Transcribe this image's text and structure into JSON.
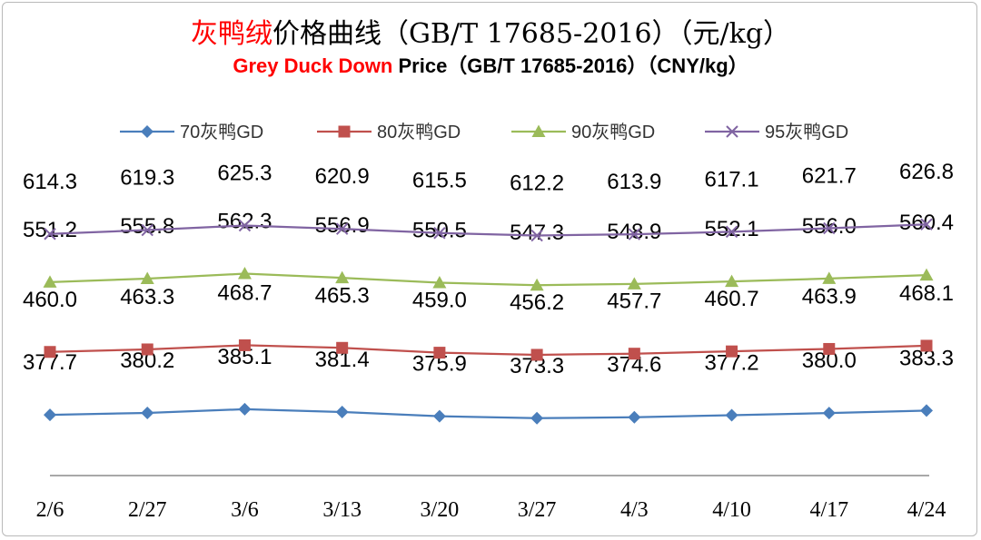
{
  "title": {
    "zh_highlight": "灰鸭绒",
    "zh_rest": "价格曲线（GB/T 17685-2016）（元/kg）",
    "en_highlight": "Grey Duck Down",
    "en_rest": " Price（GB/T 17685-2016）（CNY/kg）"
  },
  "colors": {
    "70": "#4a7ebb",
    "80": "#c0504d",
    "90": "#9bbb59",
    "95": "#8064a2"
  },
  "chart_data": {
    "type": "line",
    "categories": [
      "2/6",
      "2/27",
      "3/6",
      "3/13",
      "3/20",
      "3/27",
      "4/3",
      "4/10",
      "4/17",
      "4/24"
    ],
    "legend_position": "top",
    "grid": false,
    "series": [
      {
        "key": "70",
        "name": "70灰鸭GD",
        "marker": "diamond",
        "values": [
          377.7,
          380.2,
          385.1,
          381.4,
          375.9,
          373.3,
          374.6,
          377.2,
          380.0,
          383.3
        ]
      },
      {
        "key": "80",
        "name": "80灰鸭GD",
        "marker": "square",
        "values": [
          460.0,
          463.3,
          468.7,
          465.3,
          459.0,
          456.2,
          457.7,
          460.7,
          463.9,
          468.1
        ]
      },
      {
        "key": "90",
        "name": "90灰鸭GD",
        "marker": "triangle",
        "values": [
          551.2,
          555.8,
          562.3,
          556.9,
          550.5,
          547.3,
          548.9,
          552.1,
          556.0,
          560.4
        ]
      },
      {
        "key": "95",
        "name": "95灰鸭GD",
        "marker": "x",
        "values": [
          614.3,
          619.3,
          625.3,
          620.9,
          615.5,
          612.2,
          613.9,
          617.1,
          621.7,
          626.8
        ]
      }
    ]
  }
}
